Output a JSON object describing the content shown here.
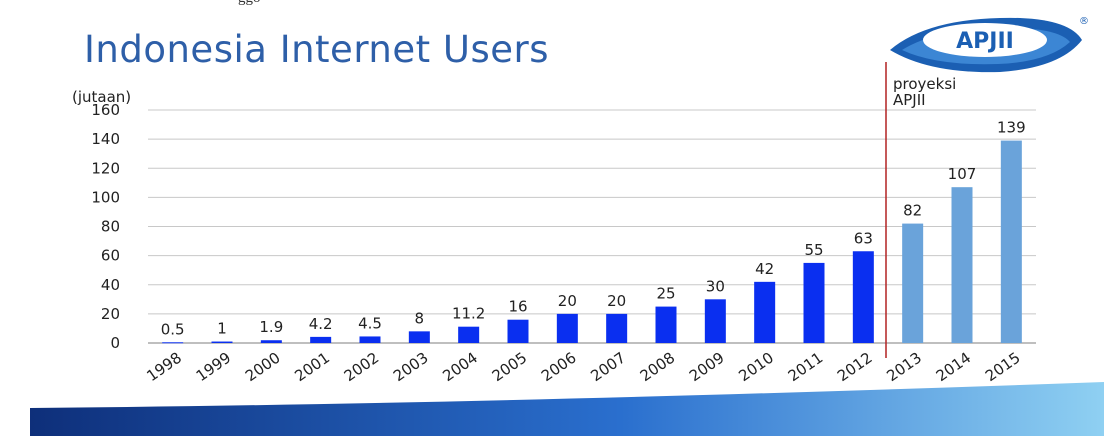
{
  "top_fragment": "ggo",
  "logo_text": "APJII",
  "logo_mark": "®",
  "colors": {
    "title": "#2e5fa8",
    "actual": "#0a2ff0",
    "projection": "#6aa3da",
    "divider": "#b22222",
    "band": "#1d47a8"
  },
  "chart_data": {
    "type": "bar",
    "title": "Indonesia Internet Users",
    "ylabel": "(jutaan)",
    "xlabel": "",
    "ylim": [
      0,
      160
    ],
    "yticks": [
      0,
      20,
      40,
      60,
      80,
      100,
      120,
      140,
      160
    ],
    "grid": true,
    "categories": [
      "1998",
      "1999",
      "2000",
      "2001",
      "2002",
      "2003",
      "2004",
      "2005",
      "2006",
      "2007",
      "2008",
      "2009",
      "2010",
      "2011",
      "2012",
      "2013",
      "2014",
      "2015"
    ],
    "values": [
      0.5,
      1,
      1.9,
      4.2,
      4.5,
      8,
      11.2,
      16,
      20,
      20,
      25,
      30,
      42,
      55,
      63,
      82,
      107,
      139
    ],
    "data_labels": [
      "0.5",
      "1",
      "1.9",
      "4.2",
      "4.5",
      "8",
      "11.2",
      "16",
      "20",
      "20",
      "25",
      "30",
      "42",
      "55",
      "63",
      "82",
      "107",
      "139"
    ],
    "projection_start_index": 15,
    "annotation": "proyeksi APJII"
  }
}
